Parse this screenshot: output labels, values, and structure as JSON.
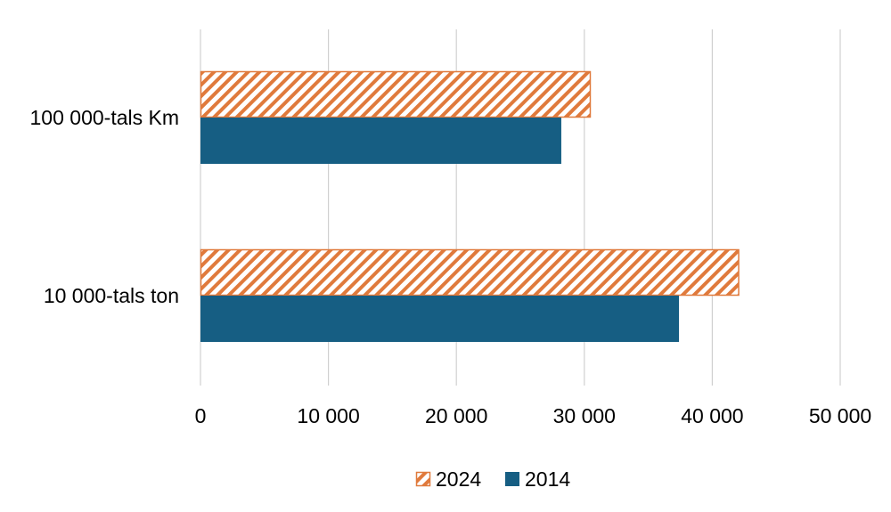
{
  "chart_data": {
    "type": "bar",
    "orientation": "horizontal",
    "categories": [
      "100 000-tals Km",
      "10 000-tals ton"
    ],
    "series": [
      {
        "name": "2024",
        "values": [
          30500,
          42100
        ],
        "color": "#E07A3C",
        "fill": "diagonal-hatch"
      },
      {
        "name": "2014",
        "values": [
          28200,
          37400
        ],
        "color": "#165E83",
        "fill": "solid"
      }
    ],
    "xlim": [
      0,
      50000
    ],
    "xticks": [
      0,
      10000,
      20000,
      30000,
      40000,
      50000
    ],
    "xtick_labels": [
      "0",
      "10 000",
      "20 000",
      "30 000",
      "40 000",
      "50 000"
    ],
    "grid": "vertical",
    "legend_position": "bottom"
  }
}
